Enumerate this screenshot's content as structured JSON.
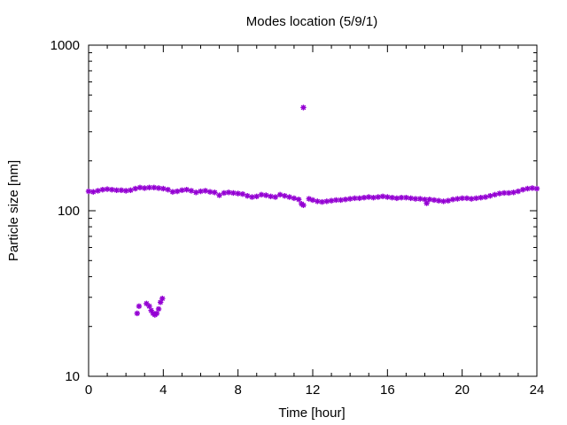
{
  "chart_data": {
    "type": "scatter",
    "title": "Modes location (5/9/1)",
    "xlabel": "Time [hour]",
    "ylabel": "Particle size [nm]",
    "xlim": [
      0,
      24
    ],
    "ylim": [
      10,
      1000
    ],
    "yscale": "log",
    "grid": false,
    "legend": "none",
    "marker_color": "#9400d3",
    "x_ticks": [
      {
        "value": 0,
        "label": "0"
      },
      {
        "value": 4,
        "label": "4"
      },
      {
        "value": 8,
        "label": "8"
      },
      {
        "value": 12,
        "label": "12"
      },
      {
        "value": 16,
        "label": "16"
      },
      {
        "value": 20,
        "label": "20"
      },
      {
        "value": 24,
        "label": "24"
      }
    ],
    "y_ticks": [
      {
        "value": 10,
        "label": "10"
      },
      {
        "value": 100,
        "label": "100"
      },
      {
        "value": 1000,
        "label": "1000"
      }
    ],
    "series": [
      {
        "points": [
          [
            0.0,
            131
          ],
          [
            0.25,
            130
          ],
          [
            0.5,
            132
          ],
          [
            0.75,
            134
          ],
          [
            1.0,
            135
          ],
          [
            1.25,
            134
          ],
          [
            1.5,
            133
          ],
          [
            1.75,
            133
          ],
          [
            2.0,
            132
          ],
          [
            2.25,
            133
          ],
          [
            2.5,
            136
          ],
          [
            2.75,
            138
          ],
          [
            3.0,
            137
          ],
          [
            3.25,
            138
          ],
          [
            3.5,
            138
          ],
          [
            3.75,
            137
          ],
          [
            4.0,
            136
          ],
          [
            4.25,
            134
          ],
          [
            4.5,
            130
          ],
          [
            4.75,
            131
          ],
          [
            5.0,
            133
          ],
          [
            5.25,
            134
          ],
          [
            5.5,
            132
          ],
          [
            5.75,
            129
          ],
          [
            6.0,
            131
          ],
          [
            6.25,
            132
          ],
          [
            6.5,
            130
          ],
          [
            6.75,
            129
          ],
          [
            7.0,
            124
          ],
          [
            7.25,
            128
          ],
          [
            7.5,
            129
          ],
          [
            7.75,
            128
          ],
          [
            8.0,
            127
          ],
          [
            8.25,
            126
          ],
          [
            8.5,
            123
          ],
          [
            8.75,
            121
          ],
          [
            9.0,
            122
          ],
          [
            9.25,
            125
          ],
          [
            9.5,
            124
          ],
          [
            9.75,
            122
          ],
          [
            10.0,
            121
          ],
          [
            10.25,
            125
          ],
          [
            10.5,
            123
          ],
          [
            10.75,
            121
          ],
          [
            11.0,
            119
          ],
          [
            11.25,
            117
          ],
          [
            11.4,
            110
          ],
          [
            11.5,
            108
          ],
          [
            11.8,
            118
          ],
          [
            12.0,
            116
          ],
          [
            12.25,
            114
          ],
          [
            12.5,
            113
          ],
          [
            12.75,
            114
          ],
          [
            13.0,
            115
          ],
          [
            13.25,
            116
          ],
          [
            13.5,
            116
          ],
          [
            13.75,
            117
          ],
          [
            14.0,
            118
          ],
          [
            14.25,
            119
          ],
          [
            14.5,
            119
          ],
          [
            14.75,
            120
          ],
          [
            15.0,
            121
          ],
          [
            15.25,
            120
          ],
          [
            15.5,
            121
          ],
          [
            15.75,
            122
          ],
          [
            16.0,
            121
          ],
          [
            16.25,
            120
          ],
          [
            16.5,
            119
          ],
          [
            16.75,
            120
          ],
          [
            17.0,
            120
          ],
          [
            17.25,
            119
          ],
          [
            17.5,
            118
          ],
          [
            17.75,
            118
          ],
          [
            18.0,
            117
          ],
          [
            18.1,
            111
          ],
          [
            18.25,
            117
          ],
          [
            18.5,
            116
          ],
          [
            18.75,
            115
          ],
          [
            19.0,
            114
          ],
          [
            19.25,
            115
          ],
          [
            19.5,
            117
          ],
          [
            19.75,
            118
          ],
          [
            20.0,
            119
          ],
          [
            20.25,
            119
          ],
          [
            20.5,
            118
          ],
          [
            20.75,
            119
          ],
          [
            21.0,
            120
          ],
          [
            21.25,
            121
          ],
          [
            21.5,
            123
          ],
          [
            21.75,
            125
          ],
          [
            22.0,
            127
          ],
          [
            22.25,
            128
          ],
          [
            22.5,
            128
          ],
          [
            22.75,
            129
          ],
          [
            23.0,
            131
          ],
          [
            23.25,
            134
          ],
          [
            23.5,
            136
          ],
          [
            23.75,
            137
          ],
          [
            24.0,
            136
          ],
          [
            11.5,
            420
          ],
          [
            2.6,
            24
          ],
          [
            2.7,
            26.5
          ],
          [
            3.1,
            27.5
          ],
          [
            3.25,
            26.5
          ],
          [
            3.35,
            25
          ],
          [
            3.45,
            24
          ],
          [
            3.55,
            23.5
          ],
          [
            3.65,
            24
          ],
          [
            3.75,
            25.5
          ],
          [
            3.85,
            28
          ],
          [
            3.95,
            29.5
          ]
        ]
      }
    ]
  }
}
